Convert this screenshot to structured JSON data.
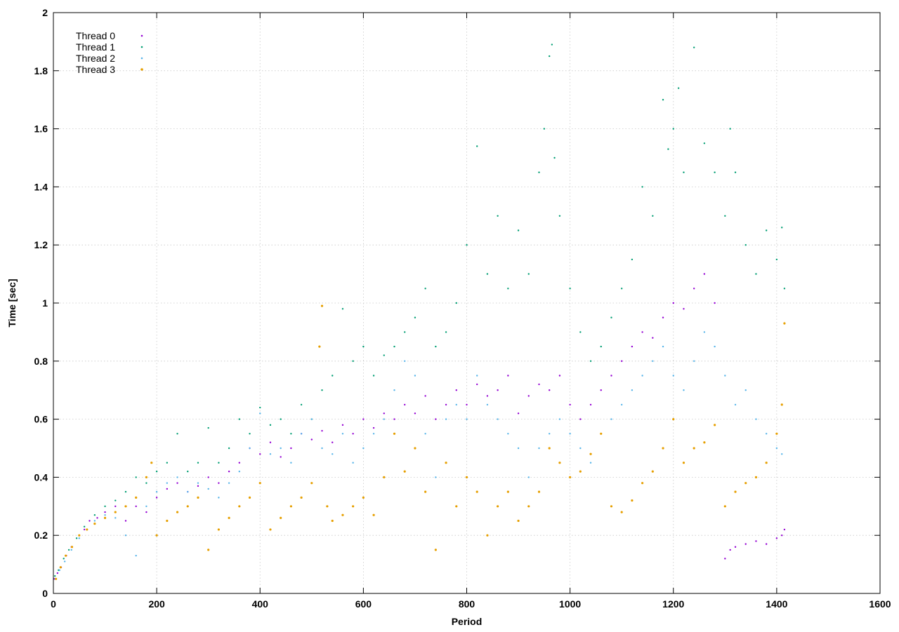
{
  "chart_data": {
    "type": "scatter",
    "xlabel": "Period",
    "ylabel": "Time [sec]",
    "xlim": [
      0,
      1600
    ],
    "ylim": [
      0,
      2
    ],
    "xticks": [
      0,
      200,
      400,
      600,
      800,
      1000,
      1200,
      1400,
      1600
    ],
    "yticks": [
      0,
      0.2,
      0.4,
      0.6,
      0.8,
      1,
      1.2,
      1.4,
      1.6,
      1.8,
      2
    ],
    "grid": true,
    "legend_position": "top-left",
    "series": [
      {
        "name": "Thread 0",
        "color": "#9400d3",
        "points": [
          [
            2,
            0.05
          ],
          [
            8,
            0.07
          ],
          [
            15,
            0.09
          ],
          [
            25,
            0.13
          ],
          [
            35,
            0.16
          ],
          [
            50,
            0.2
          ],
          [
            60,
            0.22
          ],
          [
            70,
            0.25
          ],
          [
            85,
            0.26
          ],
          [
            100,
            0.28
          ],
          [
            120,
            0.3
          ],
          [
            140,
            0.25
          ],
          [
            160,
            0.3
          ],
          [
            180,
            0.28
          ],
          [
            200,
            0.33
          ],
          [
            220,
            0.36
          ],
          [
            240,
            0.38
          ],
          [
            260,
            0.35
          ],
          [
            280,
            0.37
          ],
          [
            300,
            0.4
          ],
          [
            320,
            0.38
          ],
          [
            340,
            0.42
          ],
          [
            360,
            0.45
          ],
          [
            380,
            0.5
          ],
          [
            400,
            0.48
          ],
          [
            420,
            0.52
          ],
          [
            440,
            0.47
          ],
          [
            460,
            0.5
          ],
          [
            480,
            0.55
          ],
          [
            500,
            0.53
          ],
          [
            520,
            0.56
          ],
          [
            540,
            0.52
          ],
          [
            560,
            0.58
          ],
          [
            580,
            0.55
          ],
          [
            600,
            0.6
          ],
          [
            620,
            0.57
          ],
          [
            640,
            0.62
          ],
          [
            660,
            0.6
          ],
          [
            680,
            0.65
          ],
          [
            700,
            0.62
          ],
          [
            720,
            0.68
          ],
          [
            740,
            0.6
          ],
          [
            760,
            0.65
          ],
          [
            780,
            0.7
          ],
          [
            800,
            0.65
          ],
          [
            820,
            0.72
          ],
          [
            840,
            0.68
          ],
          [
            860,
            0.7
          ],
          [
            880,
            0.75
          ],
          [
            900,
            0.62
          ],
          [
            920,
            0.68
          ],
          [
            940,
            0.72
          ],
          [
            960,
            0.7
          ],
          [
            980,
            0.75
          ],
          [
            1000,
            0.65
          ],
          [
            1020,
            0.6
          ],
          [
            1040,
            0.65
          ],
          [
            1060,
            0.7
          ],
          [
            1080,
            0.75
          ],
          [
            1100,
            0.8
          ],
          [
            1120,
            0.85
          ],
          [
            1140,
            0.9
          ],
          [
            1160,
            0.88
          ],
          [
            1180,
            0.95
          ],
          [
            1200,
            1.0
          ],
          [
            1220,
            0.98
          ],
          [
            1240,
            1.05
          ],
          [
            1260,
            1.1
          ],
          [
            1280,
            1.0
          ],
          [
            1300,
            0.12
          ],
          [
            1310,
            0.15
          ],
          [
            1320,
            0.16
          ],
          [
            1340,
            0.17
          ],
          [
            1360,
            0.18
          ],
          [
            1380,
            0.17
          ],
          [
            1400,
            0.19
          ],
          [
            1410,
            0.2
          ],
          [
            1415,
            0.22
          ]
        ]
      },
      {
        "name": "Thread 1",
        "color": "#009e73",
        "points": [
          [
            3,
            0.06
          ],
          [
            10,
            0.08
          ],
          [
            20,
            0.12
          ],
          [
            30,
            0.15
          ],
          [
            45,
            0.19
          ],
          [
            60,
            0.23
          ],
          [
            80,
            0.27
          ],
          [
            100,
            0.3
          ],
          [
            120,
            0.32
          ],
          [
            140,
            0.35
          ],
          [
            160,
            0.4
          ],
          [
            180,
            0.38
          ],
          [
            200,
            0.42
          ],
          [
            220,
            0.45
          ],
          [
            240,
            0.55
          ],
          [
            260,
            0.42
          ],
          [
            280,
            0.45
          ],
          [
            300,
            0.57
          ],
          [
            320,
            0.45
          ],
          [
            340,
            0.5
          ],
          [
            360,
            0.6
          ],
          [
            380,
            0.55
          ],
          [
            400,
            0.64
          ],
          [
            420,
            0.58
          ],
          [
            440,
            0.6
          ],
          [
            460,
            0.55
          ],
          [
            480,
            0.65
          ],
          [
            500,
            0.6
          ],
          [
            520,
            0.7
          ],
          [
            540,
            0.75
          ],
          [
            560,
            0.98
          ],
          [
            580,
            0.8
          ],
          [
            600,
            0.85
          ],
          [
            620,
            0.75
          ],
          [
            640,
            0.82
          ],
          [
            660,
            0.85
          ],
          [
            680,
            0.9
          ],
          [
            700,
            0.95
          ],
          [
            720,
            1.05
          ],
          [
            740,
            0.85
          ],
          [
            760,
            0.9
          ],
          [
            780,
            1.0
          ],
          [
            800,
            1.2
          ],
          [
            820,
            1.54
          ],
          [
            840,
            1.1
          ],
          [
            860,
            1.3
          ],
          [
            880,
            1.05
          ],
          [
            900,
            1.25
          ],
          [
            920,
            1.1
          ],
          [
            940,
            1.45
          ],
          [
            950,
            1.6
          ],
          [
            960,
            1.85
          ],
          [
            965,
            1.89
          ],
          [
            970,
            1.5
          ],
          [
            980,
            1.3
          ],
          [
            1000,
            1.05
          ],
          [
            1020,
            0.9
          ],
          [
            1040,
            0.8
          ],
          [
            1060,
            0.85
          ],
          [
            1080,
            0.95
          ],
          [
            1100,
            1.05
          ],
          [
            1120,
            1.15
          ],
          [
            1140,
            1.4
          ],
          [
            1160,
            1.3
          ],
          [
            1180,
            1.7
          ],
          [
            1190,
            1.53
          ],
          [
            1200,
            1.6
          ],
          [
            1210,
            1.74
          ],
          [
            1220,
            1.45
          ],
          [
            1240,
            1.88
          ],
          [
            1260,
            1.55
          ],
          [
            1280,
            1.45
          ],
          [
            1300,
            1.3
          ],
          [
            1310,
            1.6
          ],
          [
            1320,
            1.45
          ],
          [
            1340,
            1.2
          ],
          [
            1360,
            1.1
          ],
          [
            1380,
            1.25
          ],
          [
            1400,
            1.15
          ],
          [
            1410,
            1.26
          ],
          [
            1415,
            1.05
          ]
        ]
      },
      {
        "name": "Thread 2",
        "color": "#56b4e9",
        "points": [
          [
            4,
            0.05
          ],
          [
            12,
            0.08
          ],
          [
            22,
            0.11
          ],
          [
            35,
            0.15
          ],
          [
            50,
            0.19
          ],
          [
            65,
            0.22
          ],
          [
            80,
            0.25
          ],
          [
            100,
            0.27
          ],
          [
            120,
            0.26
          ],
          [
            140,
            0.2
          ],
          [
            160,
            0.13
          ],
          [
            180,
            0.3
          ],
          [
            200,
            0.35
          ],
          [
            220,
            0.38
          ],
          [
            240,
            0.4
          ],
          [
            260,
            0.35
          ],
          [
            280,
            0.38
          ],
          [
            300,
            0.36
          ],
          [
            320,
            0.33
          ],
          [
            340,
            0.38
          ],
          [
            360,
            0.42
          ],
          [
            380,
            0.5
          ],
          [
            400,
            0.62
          ],
          [
            420,
            0.48
          ],
          [
            440,
            0.5
          ],
          [
            460,
            0.45
          ],
          [
            480,
            0.55
          ],
          [
            500,
            0.6
          ],
          [
            520,
            0.5
          ],
          [
            540,
            0.48
          ],
          [
            560,
            0.55
          ],
          [
            580,
            0.45
          ],
          [
            600,
            0.5
          ],
          [
            620,
            0.55
          ],
          [
            640,
            0.6
          ],
          [
            660,
            0.7
          ],
          [
            680,
            0.8
          ],
          [
            700,
            0.75
          ],
          [
            720,
            0.55
          ],
          [
            740,
            0.4
          ],
          [
            760,
            0.6
          ],
          [
            780,
            0.65
          ],
          [
            800,
            0.6
          ],
          [
            820,
            0.75
          ],
          [
            840,
            0.65
          ],
          [
            860,
            0.6
          ],
          [
            880,
            0.55
          ],
          [
            900,
            0.5
          ],
          [
            920,
            0.4
          ],
          [
            940,
            0.5
          ],
          [
            960,
            0.55
          ],
          [
            980,
            0.6
          ],
          [
            1000,
            0.55
          ],
          [
            1020,
            0.5
          ],
          [
            1040,
            0.45
          ],
          [
            1060,
            0.55
          ],
          [
            1080,
            0.6
          ],
          [
            1100,
            0.65
          ],
          [
            1120,
            0.7
          ],
          [
            1140,
            0.75
          ],
          [
            1160,
            0.8
          ],
          [
            1180,
            0.85
          ],
          [
            1200,
            0.75
          ],
          [
            1220,
            0.7
          ],
          [
            1240,
            0.8
          ],
          [
            1260,
            0.9
          ],
          [
            1280,
            0.85
          ],
          [
            1300,
            0.75
          ],
          [
            1320,
            0.65
          ],
          [
            1340,
            0.7
          ],
          [
            1360,
            0.6
          ],
          [
            1380,
            0.55
          ],
          [
            1400,
            0.5
          ],
          [
            1410,
            0.48
          ]
        ]
      },
      {
        "name": "Thread 3",
        "color": "#e69f00",
        "points": [
          [
            5,
            0.05
          ],
          [
            14,
            0.09
          ],
          [
            24,
            0.13
          ],
          [
            36,
            0.16
          ],
          [
            50,
            0.2
          ],
          [
            65,
            0.22
          ],
          [
            80,
            0.24
          ],
          [
            100,
            0.26
          ],
          [
            120,
            0.28
          ],
          [
            140,
            0.3
          ],
          [
            160,
            0.33
          ],
          [
            180,
            0.4
          ],
          [
            190,
            0.45
          ],
          [
            200,
            0.2
          ],
          [
            220,
            0.25
          ],
          [
            240,
            0.28
          ],
          [
            260,
            0.3
          ],
          [
            280,
            0.33
          ],
          [
            300,
            0.15
          ],
          [
            320,
            0.22
          ],
          [
            340,
            0.26
          ],
          [
            360,
            0.3
          ],
          [
            380,
            0.33
          ],
          [
            400,
            0.38
          ],
          [
            420,
            0.22
          ],
          [
            440,
            0.26
          ],
          [
            460,
            0.3
          ],
          [
            480,
            0.33
          ],
          [
            500,
            0.38
          ],
          [
            515,
            0.85
          ],
          [
            520,
            0.99
          ],
          [
            530,
            0.3
          ],
          [
            540,
            0.25
          ],
          [
            560,
            0.27
          ],
          [
            580,
            0.3
          ],
          [
            600,
            0.33
          ],
          [
            620,
            0.27
          ],
          [
            640,
            0.4
          ],
          [
            660,
            0.55
          ],
          [
            680,
            0.42
          ],
          [
            700,
            0.5
          ],
          [
            720,
            0.35
          ],
          [
            740,
            0.15
          ],
          [
            760,
            0.45
          ],
          [
            780,
            0.3
          ],
          [
            800,
            0.4
          ],
          [
            820,
            0.35
          ],
          [
            840,
            0.2
          ],
          [
            860,
            0.3
          ],
          [
            880,
            0.35
          ],
          [
            900,
            0.25
          ],
          [
            920,
            0.3
          ],
          [
            940,
            0.35
          ],
          [
            960,
            0.5
          ],
          [
            980,
            0.45
          ],
          [
            1000,
            0.4
          ],
          [
            1020,
            0.42
          ],
          [
            1040,
            0.48
          ],
          [
            1060,
            0.55
          ],
          [
            1080,
            0.3
          ],
          [
            1100,
            0.28
          ],
          [
            1120,
            0.32
          ],
          [
            1140,
            0.38
          ],
          [
            1160,
            0.42
          ],
          [
            1180,
            0.5
          ],
          [
            1200,
            0.6
          ],
          [
            1220,
            0.45
          ],
          [
            1240,
            0.5
          ],
          [
            1260,
            0.52
          ],
          [
            1280,
            0.58
          ],
          [
            1300,
            0.3
          ],
          [
            1320,
            0.35
          ],
          [
            1340,
            0.38
          ],
          [
            1360,
            0.4
          ],
          [
            1380,
            0.45
          ],
          [
            1400,
            0.55
          ],
          [
            1410,
            0.65
          ],
          [
            1415,
            0.93
          ]
        ]
      }
    ]
  }
}
